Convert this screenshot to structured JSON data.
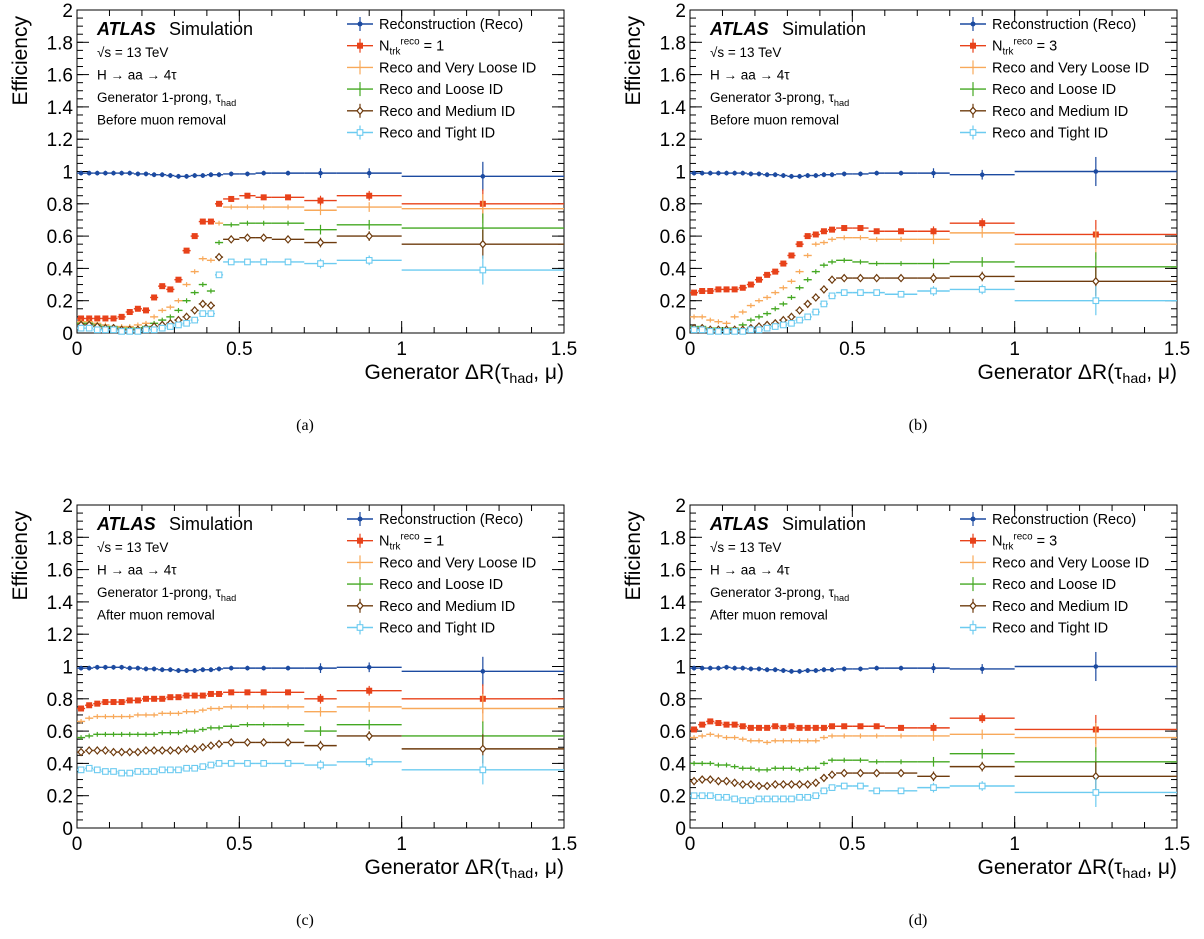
{
  "chart_data": [
    {
      "id": "a",
      "type": "scatter",
      "caption": "(a)",
      "ylabel": "Efficiency",
      "xlabel": "Generator ΔR(τ_had, μ)",
      "xlim": [
        0,
        1.5
      ],
      "ylim": [
        0,
        2
      ],
      "x_ticks": [
        "0",
        "0.5",
        "1",
        "1.5"
      ],
      "y_ticks": [
        "0",
        "0.2",
        "0.4",
        "0.6",
        "0.8",
        "1",
        "1.2",
        "1.4",
        "1.6",
        "1.8",
        "2"
      ],
      "brand": "ATLAS",
      "brand_suffix": "Simulation",
      "info": [
        "√s = 13 TeV",
        "H → aa → 4τ",
        "Generator 1-prong, τ_had",
        "Before muon removal"
      ],
      "bins": [
        0,
        0.025,
        0.05,
        0.075,
        0.1,
        0.125,
        0.15,
        0.175,
        0.2,
        0.225,
        0.25,
        0.275,
        0.3,
        0.325,
        0.35,
        0.375,
        0.4,
        0.425,
        0.45,
        0.5,
        0.55,
        0.6,
        0.7,
        0.8,
        1.0,
        1.5
      ],
      "series": [
        {
          "name": "Reconstruction (Reco)",
          "color": "#1c4aa0",
          "marker": "dot",
          "values": [
            0.99,
            0.99,
            0.99,
            0.99,
            0.99,
            0.99,
            0.99,
            0.985,
            0.985,
            0.98,
            0.98,
            0.975,
            0.97,
            0.97,
            0.975,
            0.975,
            0.98,
            0.98,
            0.985,
            0.985,
            0.99,
            0.99,
            0.99,
            0.99,
            0.97
          ]
        },
        {
          "name": "N_trk^reco = 1",
          "color": "#e8421a",
          "marker": "square",
          "values": [
            0.09,
            0.09,
            0.09,
            0.09,
            0.09,
            0.1,
            0.13,
            0.15,
            0.14,
            0.22,
            0.29,
            0.27,
            0.33,
            0.51,
            0.6,
            0.69,
            0.69,
            0.8,
            0.83,
            0.85,
            0.84,
            0.84,
            0.82,
            0.85,
            0.8
          ]
        },
        {
          "name": "Reco and Very Loose ID",
          "color": "#f8a95a",
          "marker": "hbar",
          "values": [
            0.07,
            0.07,
            0.06,
            0.05,
            0.04,
            0.04,
            0.04,
            0.05,
            0.06,
            0.1,
            0.14,
            0.16,
            0.2,
            0.3,
            0.38,
            0.46,
            0.45,
            0.68,
            0.78,
            0.78,
            0.78,
            0.78,
            0.76,
            0.78,
            0.77
          ]
        },
        {
          "name": "Reco and Loose ID",
          "color": "#44a822",
          "marker": "hbar",
          "values": [
            0.06,
            0.06,
            0.05,
            0.04,
            0.04,
            0.03,
            0.03,
            0.03,
            0.04,
            0.06,
            0.08,
            0.1,
            0.14,
            0.2,
            0.25,
            0.3,
            0.26,
            0.56,
            0.67,
            0.68,
            0.68,
            0.68,
            0.64,
            0.67,
            0.65
          ]
        },
        {
          "name": "Reco and Medium ID",
          "color": "#6e3b0e",
          "marker": "diamond",
          "values": [
            0.05,
            0.05,
            0.04,
            0.03,
            0.03,
            0.02,
            0.02,
            0.02,
            0.03,
            0.04,
            0.05,
            0.06,
            0.08,
            0.1,
            0.14,
            0.18,
            0.17,
            0.47,
            0.58,
            0.59,
            0.59,
            0.58,
            0.56,
            0.6,
            0.55
          ]
        },
        {
          "name": "Reco and Tight ID",
          "color": "#6ccbf0",
          "marker": "square-open",
          "values": [
            0.03,
            0.03,
            0.02,
            0.02,
            0.02,
            0.01,
            0.01,
            0.01,
            0.02,
            0.02,
            0.03,
            0.04,
            0.05,
            0.06,
            0.08,
            0.12,
            0.12,
            0.36,
            0.44,
            0.44,
            0.44,
            0.44,
            0.43,
            0.45,
            0.39
          ]
        }
      ]
    },
    {
      "id": "b",
      "type": "scatter",
      "caption": "(b)",
      "ylabel": "Efficiency",
      "xlabel": "Generator ΔR(τ_had, μ)",
      "xlim": [
        0,
        1.5
      ],
      "ylim": [
        0,
        2
      ],
      "x_ticks": [
        "0",
        "0.5",
        "1",
        "1.5"
      ],
      "y_ticks": [
        "0",
        "0.2",
        "0.4",
        "0.6",
        "0.8",
        "1",
        "1.2",
        "1.4",
        "1.6",
        "1.8",
        "2"
      ],
      "brand": "ATLAS",
      "brand_suffix": "Simulation",
      "info": [
        "√s = 13 TeV",
        "H → aa → 4τ",
        "Generator 3-prong, τ_had",
        "Before muon removal"
      ],
      "bins": [
        0,
        0.025,
        0.05,
        0.075,
        0.1,
        0.125,
        0.15,
        0.175,
        0.2,
        0.225,
        0.25,
        0.275,
        0.3,
        0.325,
        0.35,
        0.375,
        0.4,
        0.425,
        0.45,
        0.5,
        0.55,
        0.6,
        0.7,
        0.8,
        1.0,
        1.5
      ],
      "series": [
        {
          "name": "Reconstruction (Reco)",
          "color": "#1c4aa0",
          "marker": "dot",
          "values": [
            0.99,
            0.99,
            0.99,
            0.99,
            0.99,
            0.99,
            0.99,
            0.985,
            0.985,
            0.98,
            0.98,
            0.975,
            0.97,
            0.97,
            0.975,
            0.975,
            0.98,
            0.98,
            0.985,
            0.985,
            0.99,
            0.99,
            0.99,
            0.98,
            1.0
          ]
        },
        {
          "name": "N_trk^reco = 3",
          "color": "#e8421a",
          "marker": "square",
          "values": [
            0.25,
            0.26,
            0.26,
            0.27,
            0.27,
            0.27,
            0.28,
            0.3,
            0.33,
            0.36,
            0.38,
            0.43,
            0.48,
            0.55,
            0.6,
            0.61,
            0.63,
            0.64,
            0.65,
            0.65,
            0.63,
            0.63,
            0.63,
            0.68,
            0.61
          ]
        },
        {
          "name": "Reco and Very Loose ID",
          "color": "#f8a95a",
          "marker": "hbar",
          "values": [
            0.1,
            0.1,
            0.08,
            0.07,
            0.06,
            0.1,
            0.13,
            0.17,
            0.2,
            0.22,
            0.25,
            0.28,
            0.32,
            0.38,
            0.48,
            0.55,
            0.56,
            0.58,
            0.59,
            0.59,
            0.58,
            0.58,
            0.58,
            0.62,
            0.55
          ]
        },
        {
          "name": "Reco and Loose ID",
          "color": "#44a822",
          "marker": "hbar",
          "values": [
            0.04,
            0.04,
            0.03,
            0.03,
            0.03,
            0.03,
            0.05,
            0.08,
            0.1,
            0.12,
            0.15,
            0.18,
            0.22,
            0.28,
            0.33,
            0.38,
            0.42,
            0.44,
            0.45,
            0.44,
            0.43,
            0.43,
            0.43,
            0.44,
            0.41
          ]
        },
        {
          "name": "Reco and Medium ID",
          "color": "#6e3b0e",
          "marker": "diamond",
          "values": [
            0.03,
            0.03,
            0.02,
            0.02,
            0.02,
            0.02,
            0.02,
            0.03,
            0.04,
            0.05,
            0.06,
            0.08,
            0.1,
            0.14,
            0.18,
            0.22,
            0.27,
            0.33,
            0.34,
            0.34,
            0.34,
            0.34,
            0.34,
            0.35,
            0.32
          ]
        },
        {
          "name": "Reco and Tight ID",
          "color": "#6ccbf0",
          "marker": "square-open",
          "values": [
            0.02,
            0.02,
            0.01,
            0.01,
            0.01,
            0.01,
            0.01,
            0.02,
            0.02,
            0.03,
            0.04,
            0.05,
            0.06,
            0.08,
            0.1,
            0.13,
            0.18,
            0.23,
            0.25,
            0.25,
            0.25,
            0.24,
            0.26,
            0.27,
            0.2
          ]
        }
      ]
    },
    {
      "id": "c",
      "type": "scatter",
      "caption": "(c)",
      "ylabel": "Efficiency",
      "xlabel": "Generator ΔR(τ_had, μ)",
      "xlim": [
        0,
        1.5
      ],
      "ylim": [
        0,
        2
      ],
      "x_ticks": [
        "0",
        "0.5",
        "1",
        "1.5"
      ],
      "y_ticks": [
        "0",
        "0.2",
        "0.4",
        "0.6",
        "0.8",
        "1",
        "1.2",
        "1.4",
        "1.6",
        "1.8",
        "2"
      ],
      "brand": "ATLAS",
      "brand_suffix": "Simulation",
      "info": [
        "√s = 13 TeV",
        "H → aa → 4τ",
        "Generator 1-prong, τ_had",
        "After muon removal"
      ],
      "bins": [
        0,
        0.025,
        0.05,
        0.075,
        0.1,
        0.125,
        0.15,
        0.175,
        0.2,
        0.225,
        0.25,
        0.275,
        0.3,
        0.325,
        0.35,
        0.375,
        0.4,
        0.425,
        0.45,
        0.5,
        0.55,
        0.6,
        0.7,
        0.8,
        1.0,
        1.5
      ],
      "series": [
        {
          "name": "Reconstruction (Reco)",
          "color": "#1c4aa0",
          "marker": "dot",
          "values": [
            0.99,
            0.99,
            0.995,
            0.995,
            0.995,
            0.995,
            0.99,
            0.99,
            0.985,
            0.985,
            0.98,
            0.98,
            0.975,
            0.975,
            0.975,
            0.98,
            0.98,
            0.985,
            0.99,
            0.99,
            0.99,
            0.99,
            0.99,
            0.995,
            0.97
          ]
        },
        {
          "name": "N_trk^reco = 1",
          "color": "#e8421a",
          "marker": "square",
          "values": [
            0.74,
            0.76,
            0.77,
            0.78,
            0.78,
            0.78,
            0.79,
            0.79,
            0.8,
            0.8,
            0.8,
            0.81,
            0.81,
            0.82,
            0.82,
            0.82,
            0.83,
            0.83,
            0.84,
            0.84,
            0.84,
            0.84,
            0.8,
            0.85,
            0.8
          ]
        },
        {
          "name": "Reco and Very Loose ID",
          "color": "#f8a95a",
          "marker": "hbar",
          "values": [
            0.66,
            0.68,
            0.69,
            0.69,
            0.69,
            0.69,
            0.69,
            0.7,
            0.7,
            0.7,
            0.71,
            0.71,
            0.71,
            0.72,
            0.72,
            0.73,
            0.74,
            0.74,
            0.75,
            0.75,
            0.75,
            0.75,
            0.72,
            0.75,
            0.74
          ]
        },
        {
          "name": "Reco and Loose ID",
          "color": "#44a822",
          "marker": "hbar",
          "values": [
            0.56,
            0.57,
            0.58,
            0.58,
            0.58,
            0.58,
            0.58,
            0.58,
            0.58,
            0.58,
            0.59,
            0.59,
            0.59,
            0.6,
            0.6,
            0.61,
            0.62,
            0.62,
            0.63,
            0.64,
            0.64,
            0.64,
            0.6,
            0.64,
            0.57
          ]
        },
        {
          "name": "Reco and Medium ID",
          "color": "#6e3b0e",
          "marker": "diamond",
          "values": [
            0.47,
            0.48,
            0.48,
            0.48,
            0.47,
            0.47,
            0.47,
            0.47,
            0.48,
            0.48,
            0.48,
            0.48,
            0.48,
            0.49,
            0.49,
            0.5,
            0.51,
            0.52,
            0.53,
            0.53,
            0.53,
            0.53,
            0.51,
            0.57,
            0.49
          ]
        },
        {
          "name": "Reco and Tight ID",
          "color": "#6ccbf0",
          "marker": "square-open",
          "values": [
            0.36,
            0.37,
            0.36,
            0.35,
            0.35,
            0.34,
            0.34,
            0.35,
            0.35,
            0.35,
            0.36,
            0.36,
            0.36,
            0.37,
            0.37,
            0.38,
            0.39,
            0.4,
            0.4,
            0.4,
            0.4,
            0.4,
            0.39,
            0.41,
            0.36
          ]
        }
      ]
    },
    {
      "id": "d",
      "type": "scatter",
      "caption": "(d)",
      "ylabel": "Efficiency",
      "xlabel": "Generator ΔR(τ_had, μ)",
      "xlim": [
        0,
        1.5
      ],
      "ylim": [
        0,
        2
      ],
      "x_ticks": [
        "0",
        "0.5",
        "1",
        "1.5"
      ],
      "y_ticks": [
        "0",
        "0.2",
        "0.4",
        "0.6",
        "0.8",
        "1",
        "1.2",
        "1.4",
        "1.6",
        "1.8",
        "2"
      ],
      "brand": "ATLAS",
      "brand_suffix": "Simulation",
      "info": [
        "√s = 13 TeV",
        "H → aa → 4τ",
        "Generator 3-prong, τ_had",
        "After muon removal"
      ],
      "bins": [
        0,
        0.025,
        0.05,
        0.075,
        0.1,
        0.125,
        0.15,
        0.175,
        0.2,
        0.225,
        0.25,
        0.275,
        0.3,
        0.325,
        0.35,
        0.375,
        0.4,
        0.425,
        0.45,
        0.5,
        0.55,
        0.6,
        0.7,
        0.8,
        1.0,
        1.5
      ],
      "series": [
        {
          "name": "Reconstruction (Reco)",
          "color": "#1c4aa0",
          "marker": "dot",
          "values": [
            0.99,
            0.99,
            0.99,
            0.99,
            0.995,
            0.99,
            0.99,
            0.985,
            0.985,
            0.98,
            0.98,
            0.975,
            0.97,
            0.97,
            0.975,
            0.975,
            0.98,
            0.98,
            0.985,
            0.985,
            0.99,
            0.99,
            0.99,
            0.985,
            1.0
          ]
        },
        {
          "name": "N_trk^reco = 3",
          "color": "#e8421a",
          "marker": "square",
          "values": [
            0.61,
            0.64,
            0.66,
            0.65,
            0.64,
            0.64,
            0.63,
            0.62,
            0.62,
            0.62,
            0.63,
            0.62,
            0.63,
            0.62,
            0.62,
            0.62,
            0.62,
            0.63,
            0.63,
            0.63,
            0.63,
            0.62,
            0.62,
            0.68,
            0.61
          ]
        },
        {
          "name": "Reco and Very Loose ID",
          "color": "#f8a95a",
          "marker": "hbar",
          "values": [
            0.56,
            0.57,
            0.58,
            0.57,
            0.56,
            0.56,
            0.55,
            0.54,
            0.54,
            0.53,
            0.54,
            0.54,
            0.54,
            0.54,
            0.54,
            0.54,
            0.56,
            0.57,
            0.57,
            0.57,
            0.57,
            0.57,
            0.57,
            0.58,
            0.56
          ]
        },
        {
          "name": "Reco and Loose ID",
          "color": "#44a822",
          "marker": "hbar",
          "values": [
            0.4,
            0.4,
            0.4,
            0.39,
            0.39,
            0.38,
            0.37,
            0.37,
            0.36,
            0.36,
            0.37,
            0.37,
            0.37,
            0.36,
            0.37,
            0.37,
            0.4,
            0.42,
            0.42,
            0.42,
            0.41,
            0.41,
            0.41,
            0.46,
            0.41
          ]
        },
        {
          "name": "Reco and Medium ID",
          "color": "#6e3b0e",
          "marker": "diamond",
          "values": [
            0.29,
            0.3,
            0.3,
            0.29,
            0.29,
            0.28,
            0.27,
            0.27,
            0.26,
            0.26,
            0.27,
            0.27,
            0.27,
            0.27,
            0.27,
            0.28,
            0.31,
            0.33,
            0.34,
            0.34,
            0.34,
            0.34,
            0.32,
            0.38,
            0.32
          ]
        },
        {
          "name": "Reco and Tight ID",
          "color": "#6ccbf0",
          "marker": "square-open",
          "values": [
            0.2,
            0.2,
            0.2,
            0.19,
            0.19,
            0.18,
            0.17,
            0.17,
            0.18,
            0.18,
            0.18,
            0.18,
            0.18,
            0.19,
            0.19,
            0.2,
            0.23,
            0.25,
            0.26,
            0.26,
            0.23,
            0.23,
            0.25,
            0.26,
            0.22
          ]
        }
      ]
    }
  ]
}
